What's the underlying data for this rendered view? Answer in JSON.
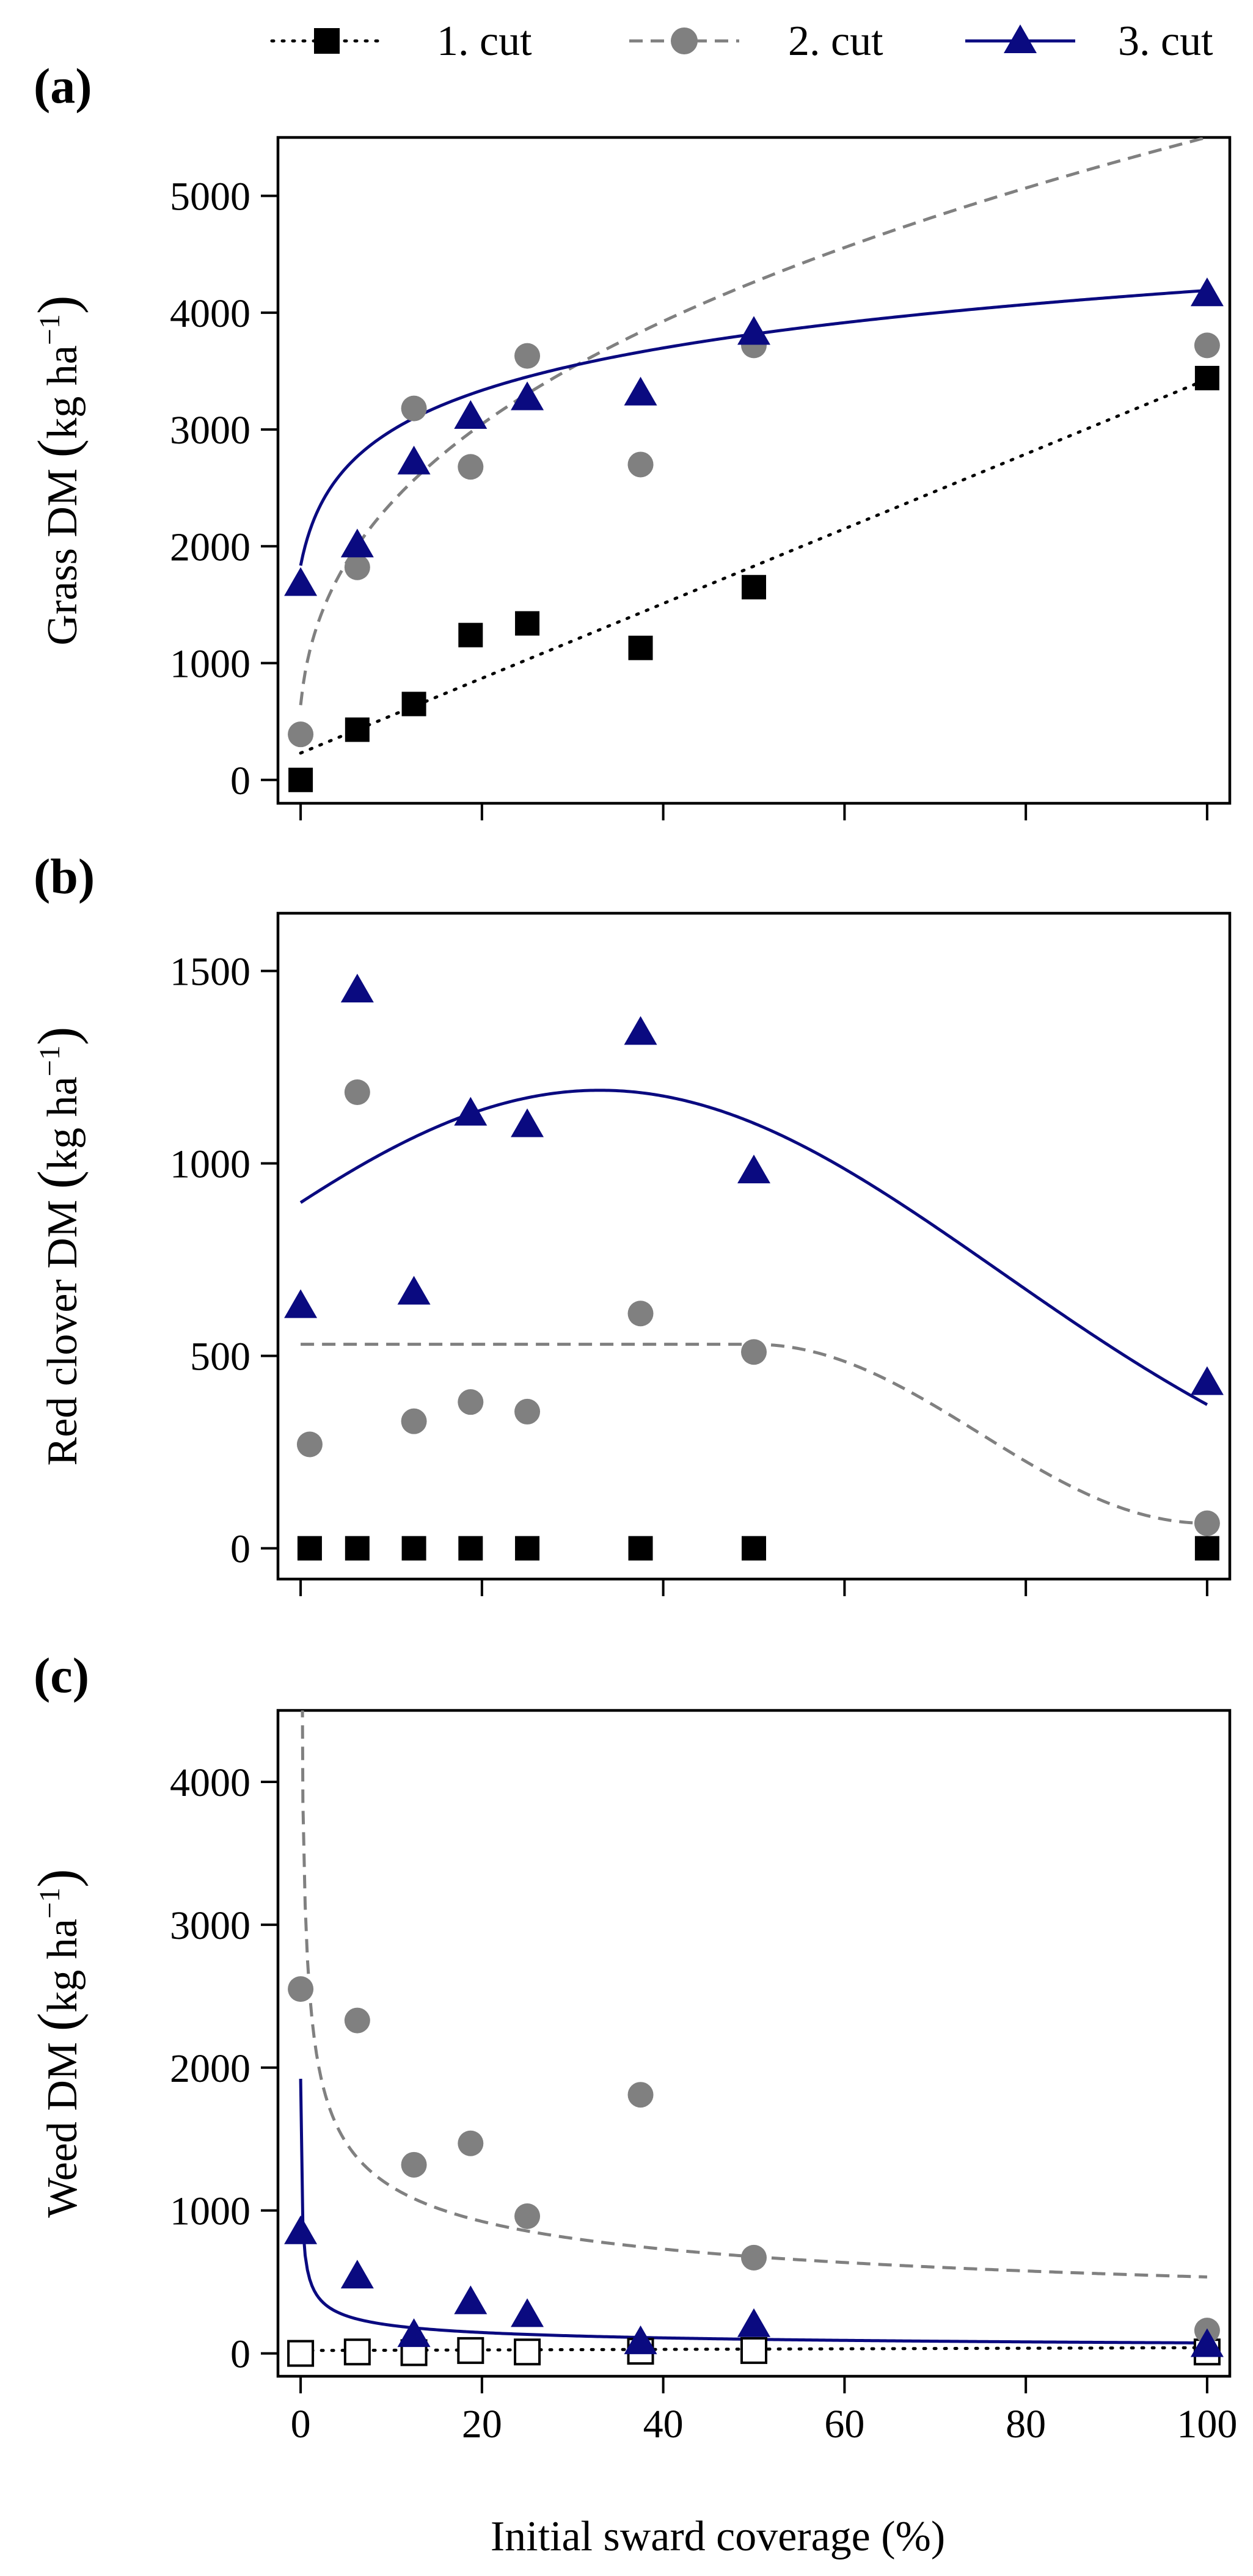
{
  "legend": [
    {
      "label": "1. cut",
      "marker": "square",
      "line": "dotted",
      "color": "#000000"
    },
    {
      "label": "2. cut",
      "marker": "circle",
      "line": "dashed",
      "color": "#808080"
    },
    {
      "label": "3. cut",
      "marker": "triangle",
      "line": "solid",
      "color": "#0a0a80"
    }
  ],
  "x_axis_label": "Initial sward coverage (%)",
  "chart_data": [
    {
      "type": "scatter",
      "panel_label": "(a)",
      "ylabel_main": "Grass DM",
      "ylabel_unit": "kg ha",
      "ylabel_exp": "−1",
      "xlim": [
        -2.5,
        102.5
      ],
      "ylim": [
        -200,
        5500
      ],
      "xticks": [
        0,
        20,
        40,
        60,
        80,
        100
      ],
      "yticks": [
        0,
        1000,
        2000,
        3000,
        4000,
        5000
      ],
      "series": [
        {
          "name": "1. cut",
          "points": [
            [
              0,
              0
            ],
            [
              6.25,
              430
            ],
            [
              12.5,
              650
            ],
            [
              18.75,
              1240
            ],
            [
              25,
              1340
            ],
            [
              37.5,
              1130
            ],
            [
              50,
              1650
            ],
            [
              100,
              3440
            ]
          ],
          "fit": {
            "kind": "linear",
            "a": 230,
            "b": 32
          }
        },
        {
          "name": "2. cut",
          "points": [
            [
              0,
              390
            ],
            [
              6.25,
              1820
            ],
            [
              12.5,
              3180
            ],
            [
              18.75,
              2680
            ],
            [
              25,
              3630
            ],
            [
              37.5,
              2700
            ],
            [
              50,
              3720
            ],
            [
              100,
              3720
            ]
          ],
          "fit": {
            "kind": "power",
            "a": 1000,
            "b": 0.37,
            "x0": 0.3
          }
        },
        {
          "name": "3. cut",
          "points": [
            [
              0,
              1680
            ],
            [
              6.25,
              2010
            ],
            [
              12.5,
              2720
            ],
            [
              18.75,
              3110
            ],
            [
              25,
              3270
            ],
            [
              37.5,
              3310
            ],
            [
              50,
              3830
            ],
            [
              100,
              4160
            ]
          ],
          "fit": {
            "kind": "log",
            "a": 1650,
            "b": 550,
            "x0": 0.4
          }
        }
      ]
    },
    {
      "type": "scatter",
      "panel_label": "(b)",
      "ylabel_main": "Red clover DM",
      "ylabel_unit": "kg ha",
      "ylabel_exp": "−1",
      "xlim": [
        -2.5,
        102.5
      ],
      "ylim": [
        -80,
        1650
      ],
      "xticks": [
        0,
        20,
        40,
        60,
        80,
        100
      ],
      "yticks": [
        0,
        500,
        1000,
        1500
      ],
      "series": [
        {
          "name": "1. cut",
          "points": [
            [
              1,
              0
            ],
            [
              6.25,
              0
            ],
            [
              12.5,
              0
            ],
            [
              18.75,
              0
            ],
            [
              25,
              0
            ],
            [
              37.5,
              0
            ],
            [
              50,
              0
            ],
            [
              100,
              0
            ]
          ],
          "fit": null
        },
        {
          "name": "2. cut",
          "points": [
            [
              1,
              270
            ],
            [
              6.25,
              1185
            ],
            [
              12.5,
              330
            ],
            [
              18.75,
              380
            ],
            [
              25,
              355
            ],
            [
              37.5,
              610
            ],
            [
              50,
              510
            ],
            [
              100,
              65
            ]
          ],
          "fit": {
            "kind": "plateau",
            "level": 530,
            "x_break": 50,
            "x_end": 100,
            "y_end": 65
          }
        },
        {
          "name": "3. cut",
          "points": [
            [
              0,
              630
            ],
            [
              6.25,
              1450
            ],
            [
              12.5,
              665
            ],
            [
              18.75,
              1130
            ],
            [
              25,
              1100
            ],
            [
              37.5,
              1340
            ],
            [
              50,
              980
            ],
            [
              100,
              430
            ]
          ],
          "fit": {
            "kind": "gauss",
            "a": 1190,
            "mu": 33,
            "sigma": 44
          }
        }
      ]
    },
    {
      "type": "scatter",
      "panel_label": "(c)",
      "ylabel_main": "Weed DM",
      "ylabel_unit": "kg ha",
      "ylabel_exp": "−1",
      "xlim": [
        -2.5,
        102.5
      ],
      "ylim": [
        -160,
        4500
      ],
      "xticks": [
        0,
        20,
        40,
        60,
        80,
        100
      ],
      "yticks": [
        0,
        1000,
        2000,
        3000,
        4000
      ],
      "series": [
        {
          "name": "1. cut",
          "open": true,
          "points": [
            [
              0,
              0
            ],
            [
              6.25,
              10
            ],
            [
              12.5,
              5
            ],
            [
              18.75,
              20
            ],
            [
              25,
              10
            ],
            [
              37.5,
              15
            ],
            [
              50,
              20
            ],
            [
              100,
              10
            ]
          ],
          "fit": {
            "kind": "linear",
            "a": 20,
            "b": 0.2
          }
        },
        {
          "name": "2. cut",
          "points": [
            [
              0,
              2550
            ],
            [
              6.25,
              2330
            ],
            [
              12.5,
              1320
            ],
            [
              18.75,
              1470
            ],
            [
              25,
              960
            ],
            [
              37.5,
              1810
            ],
            [
              50,
              670
            ],
            [
              100,
              160
            ]
          ],
          "fit": {
            "kind": "power",
            "a": 2560,
            "b": -0.34,
            "x0": 0.05
          }
        },
        {
          "name": "3. cut",
          "points": [
            [
              0,
              850
            ],
            [
              6.25,
              540
            ],
            [
              12.5,
              130
            ],
            [
              18.75,
              360
            ],
            [
              25,
              270
            ],
            [
              37.5,
              80
            ],
            [
              50,
              200
            ],
            [
              100,
              60
            ]
          ],
          "fit": {
            "kind": "power",
            "a": 530,
            "b": -0.43,
            "x0": 0.05
          }
        }
      ]
    }
  ]
}
